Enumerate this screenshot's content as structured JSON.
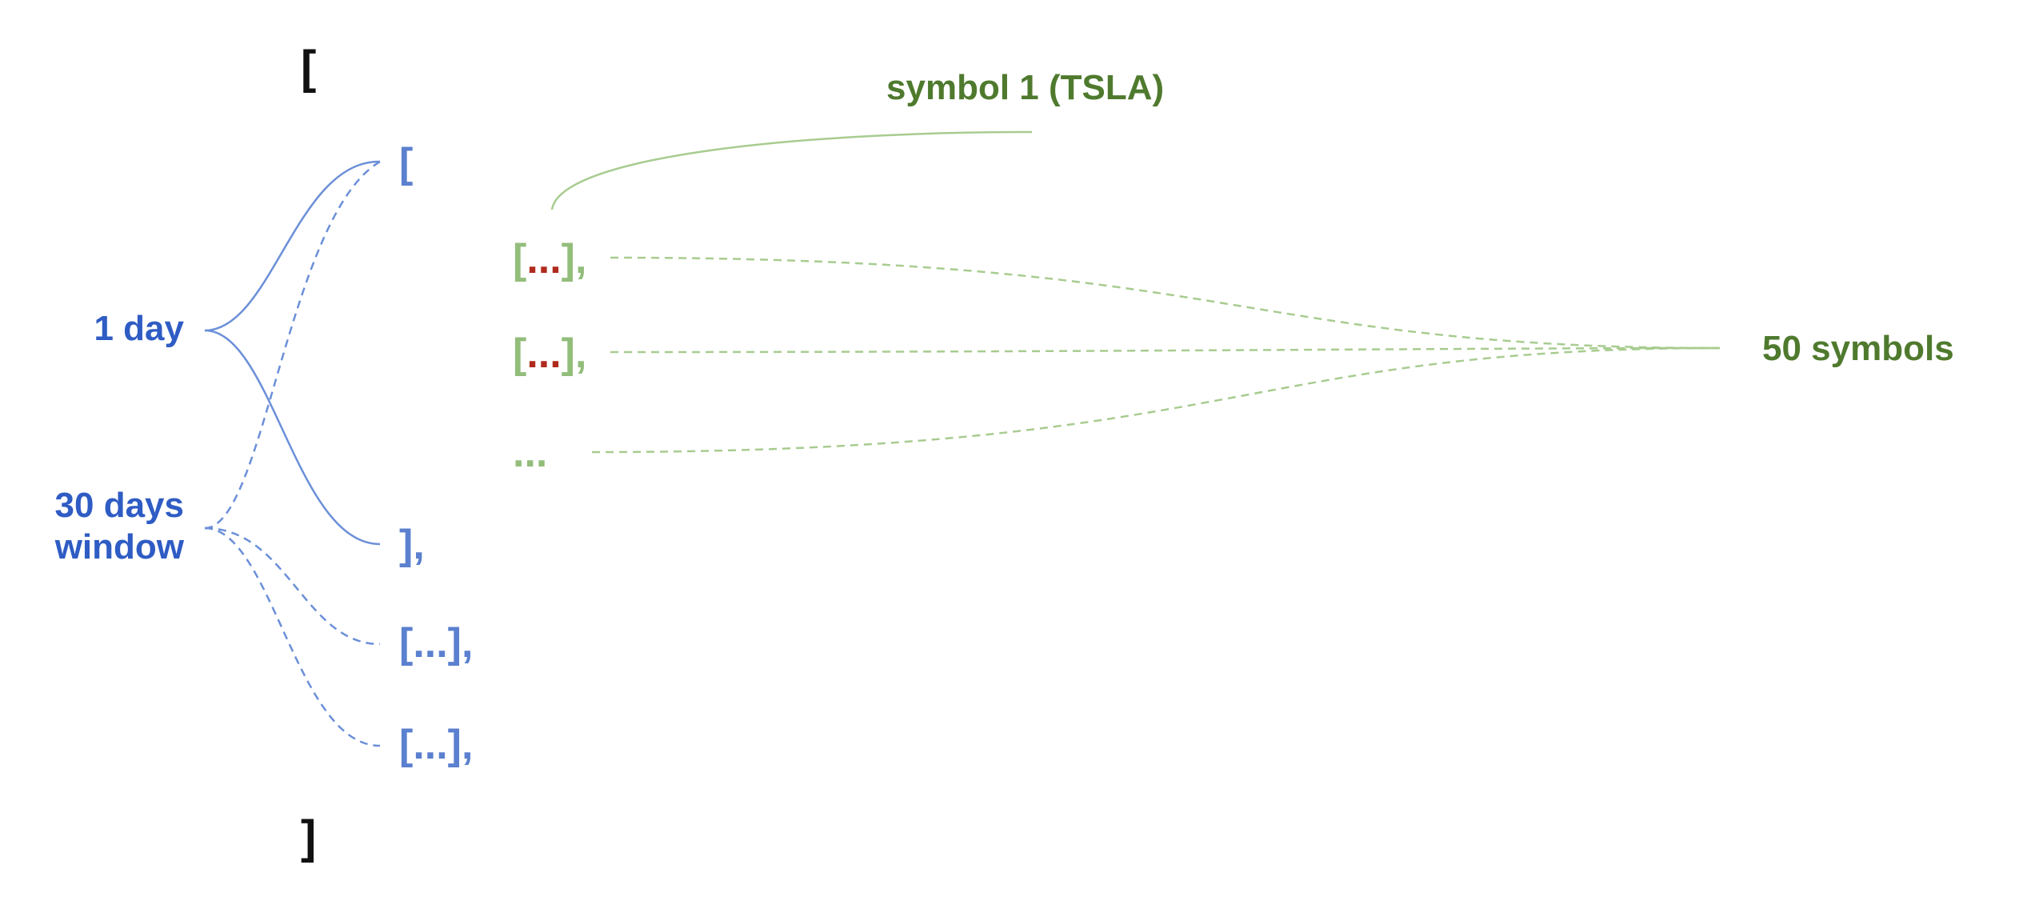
{
  "outer": {
    "open": "[",
    "close": "]"
  },
  "left_labels": {
    "one_day": "1 day",
    "window_line1": "30 days",
    "window_line2": "window"
  },
  "days": {
    "open": "[",
    "close": "],",
    "collapsed1": "[...],",
    "collapsed2": "[...],"
  },
  "symbols": {
    "row1": {
      "open": "[",
      "dots": "...",
      "close": "],"
    },
    "row2": {
      "open": "[",
      "dots": "...",
      "close": "],"
    },
    "ellipsis": "..."
  },
  "right_labels": {
    "symbol1": "symbol 1 (TSLA)",
    "fifty": "50 symbols"
  },
  "colors": {
    "blue_text": "#2f5cc4",
    "blue_line": "#6b8fd8",
    "green_text": "#4f7a2e",
    "green_line": "#a8cc90",
    "red": "#b02a1d",
    "black": "#111111"
  }
}
